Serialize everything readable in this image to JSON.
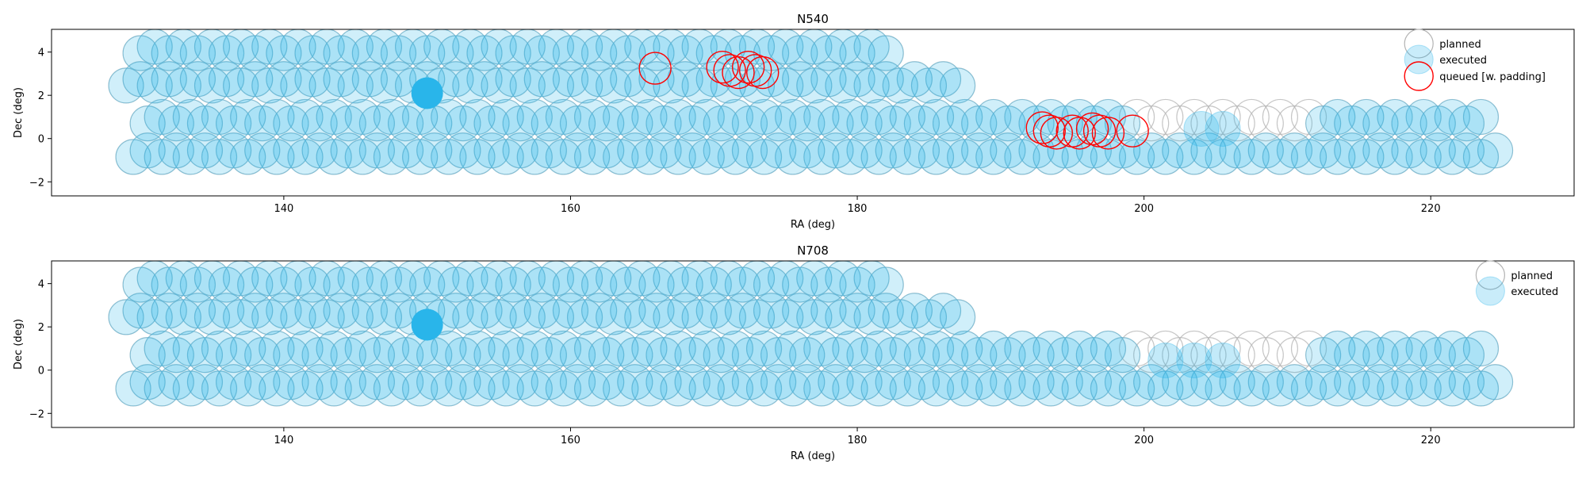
{
  "colors": {
    "planned": "#b3b3b3",
    "executed": "#29b5ea",
    "queued": "#ff0000",
    "axis": "#000000"
  },
  "chart_data": [
    {
      "type": "scatter",
      "title": "N540",
      "xlabel": "RA (deg)",
      "ylabel": "Dec (deg)",
      "xlim": [
        123.8,
        230.0
      ],
      "ylim": [
        -2.65,
        5.05
      ],
      "xticks": [
        140,
        160,
        180,
        200,
        220
      ],
      "yticks": [
        -2,
        0,
        2,
        4
      ],
      "grid": false,
      "legend_position": "top-right",
      "legend": [
        "planned",
        "executed",
        "queued [w. padding]"
      ],
      "rows": [
        {
          "dec": 4.1,
          "ra_start": 130.0,
          "ra_end": 182.0,
          "step": 1.0
        },
        {
          "dec": 2.6,
          "ra_start": 129.0,
          "ra_end": 187.0,
          "step": 1.0
        },
        {
          "dec": 0.85,
          "ra_start": 130.5,
          "ra_end": 224.0,
          "step": 1.0
        },
        {
          "dec": -0.7,
          "ra_start": 129.5,
          "ra_end": 225.0,
          "step": 1.0
        }
      ],
      "planned_only": [
        {
          "dec": 0.85,
          "ra_from": 199.5,
          "ra_to": 211.5
        }
      ],
      "executed_extra": [
        {
          "ra": 204.0,
          "dec": 0.45
        },
        {
          "ra": 205.5,
          "dec": 0.45
        }
      ],
      "highlight": {
        "ra": 150.0,
        "dec": 2.1
      },
      "queued": [
        {
          "ra": 165.9,
          "dec": 3.25
        },
        {
          "ra": 170.6,
          "dec": 3.3
        },
        {
          "ra": 171.1,
          "dec": 3.15
        },
        {
          "ra": 171.7,
          "dec": 3.05
        },
        {
          "ra": 172.4,
          "dec": 3.3
        },
        {
          "ra": 172.9,
          "dec": 3.15
        },
        {
          "ra": 173.4,
          "dec": 3.05
        },
        {
          "ra": 192.9,
          "dec": 0.5
        },
        {
          "ra": 193.4,
          "dec": 0.35
        },
        {
          "ra": 193.9,
          "dec": 0.25
        },
        {
          "ra": 195.0,
          "dec": 0.35
        },
        {
          "ra": 195.5,
          "dec": 0.25
        },
        {
          "ra": 196.4,
          "dec": 0.45
        },
        {
          "ra": 196.9,
          "dec": 0.35
        },
        {
          "ra": 197.5,
          "dec": 0.25
        },
        {
          "ra": 199.2,
          "dec": 0.35
        }
      ]
    },
    {
      "type": "scatter",
      "title": "N708",
      "xlabel": "RA (deg)",
      "ylabel": "Dec (deg)",
      "xlim": [
        123.8,
        230.0
      ],
      "ylim": [
        -2.65,
        5.05
      ],
      "xticks": [
        140,
        160,
        180,
        200,
        220
      ],
      "yticks": [
        -2,
        0,
        2,
        4
      ],
      "grid": false,
      "legend_position": "top-right",
      "legend": [
        "planned",
        "executed"
      ],
      "rows": [
        {
          "dec": 4.1,
          "ra_start": 130.0,
          "ra_end": 182.0,
          "step": 1.0
        },
        {
          "dec": 2.6,
          "ra_start": 129.0,
          "ra_end": 187.0,
          "step": 1.0
        },
        {
          "dec": 0.85,
          "ra_start": 130.5,
          "ra_end": 224.0,
          "step": 1.0
        },
        {
          "dec": -0.7,
          "ra_start": 129.5,
          "ra_end": 225.0,
          "step": 1.0
        }
      ],
      "planned_only": [
        {
          "dec": 0.85,
          "ra_from": 199.5,
          "ra_to": 211.5
        }
      ],
      "executed_extra": [
        {
          "ra": 201.5,
          "dec": 0.45
        },
        {
          "ra": 203.5,
          "dec": 0.45
        },
        {
          "ra": 205.5,
          "dec": 0.45
        }
      ],
      "highlight": {
        "ra": 150.0,
        "dec": 2.1
      },
      "queued": []
    }
  ]
}
